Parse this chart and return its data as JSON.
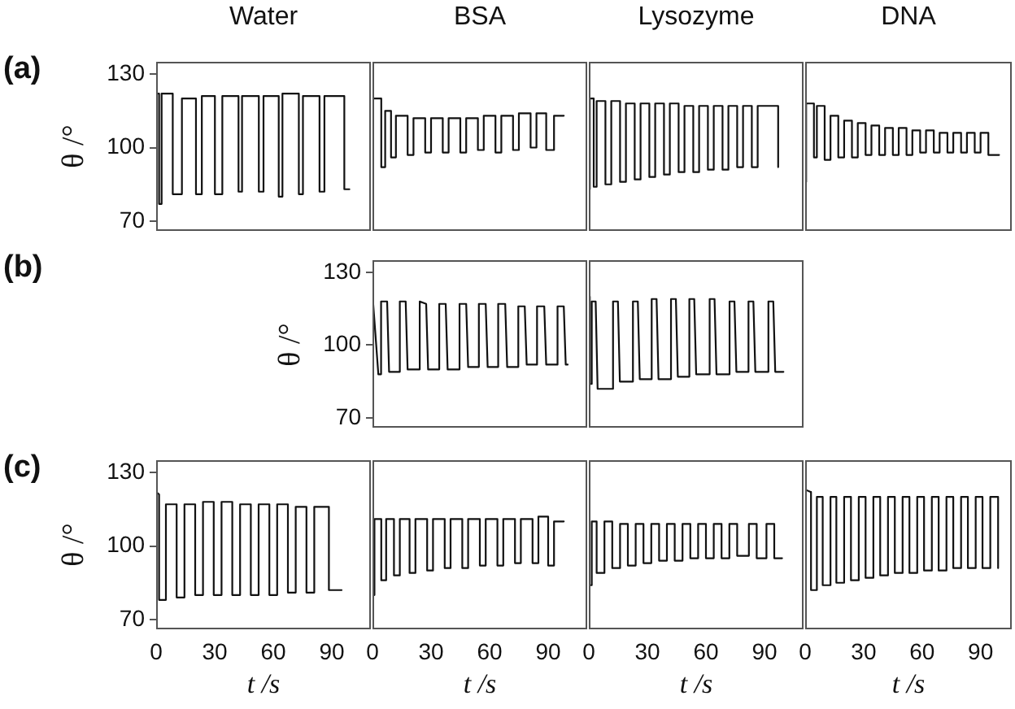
{
  "chart_data": [
    {
      "type": "line",
      "title": "Water",
      "ylabel": "θ /°",
      "annotations": [
        "(a)"
      ],
      "color": "#111111",
      "marker": "none",
      "line_style": "solid",
      "tick_labels": "y",
      "xlim": [
        0,
        110
      ],
      "xticks": [
        0,
        30,
        60,
        90
      ],
      "ylim": [
        66,
        135
      ],
      "yticks": [
        70,
        100,
        130
      ],
      "x": [
        0,
        0.3,
        1.5,
        1.5,
        2.8,
        2.8,
        8.5,
        8.5,
        13.2,
        13.2,
        20.4,
        20.4,
        23.4,
        23.4,
        30.1,
        30.1,
        33.9,
        33.9,
        42.2,
        42.2,
        44,
        44,
        52.6,
        52.6,
        55,
        55,
        62.8,
        62.8,
        64.7,
        64.7,
        73.1,
        73.1,
        75.2,
        75.2,
        83.7,
        83.7,
        86.2,
        86.2,
        96.4,
        96.4,
        99
      ],
      "values": [
        76,
        122,
        122,
        77,
        77,
        122,
        122,
        81,
        81,
        120,
        120,
        81,
        81,
        121,
        121,
        81,
        81,
        121,
        121,
        82,
        82,
        121,
        121,
        82,
        82,
        121,
        121,
        80,
        80,
        122,
        122,
        81,
        81,
        121,
        121,
        82,
        82,
        121,
        121,
        83,
        83
      ]
    },
    {
      "type": "line",
      "title": "BSA",
      "color": "#111111",
      "marker": "none",
      "line_style": "solid",
      "tick_labels": false,
      "xlim": [
        0,
        110
      ],
      "xticks": [
        0,
        30,
        60,
        90
      ],
      "ylim": [
        66,
        135
      ],
      "yticks": [
        70,
        100,
        130
      ],
      "x": [
        0,
        4.5,
        4.5,
        6.5,
        6.5,
        9.5,
        9.5,
        12,
        12,
        18,
        18,
        21,
        21,
        27,
        27,
        30,
        30,
        36,
        36,
        39,
        39,
        45,
        45,
        48,
        48,
        54,
        54,
        57,
        57,
        63,
        63,
        66,
        66,
        72,
        72,
        75,
        75,
        81,
        81,
        84,
        84,
        89,
        89,
        93,
        93,
        98
      ],
      "values": [
        120,
        120,
        92,
        92,
        115,
        115,
        96,
        96,
        113,
        113,
        97,
        97,
        112,
        112,
        98,
        98,
        112,
        112,
        98,
        98,
        112,
        112,
        98,
        98,
        112,
        112,
        99,
        99,
        113,
        113,
        98,
        98,
        113,
        113,
        99,
        99,
        114,
        114,
        100,
        100,
        114,
        114,
        99,
        99,
        113,
        113
      ]
    },
    {
      "type": "line",
      "title": "Lysozyme",
      "color": "#111111",
      "marker": "none",
      "line_style": "solid",
      "tick_labels": false,
      "xlim": [
        0,
        110
      ],
      "xticks": [
        0,
        30,
        60,
        90
      ],
      "ylim": [
        66,
        135
      ],
      "yticks": [
        70,
        100,
        130
      ],
      "x": [
        0,
        0.5,
        2.5,
        2.5,
        4,
        4,
        8.5,
        8.5,
        11.5,
        11.5,
        16,
        16,
        19,
        19,
        23.5,
        23.5,
        26.5,
        26.5,
        31,
        31,
        34,
        34,
        38.5,
        38.5,
        41.5,
        41.5,
        46,
        46,
        49,
        49,
        53.5,
        53.5,
        56.5,
        56.5,
        61,
        61,
        64,
        64,
        68.5,
        68.5,
        71.5,
        71.5,
        76,
        76,
        79,
        79,
        83.5,
        83.5,
        86.5,
        86.5,
        97,
        97
      ],
      "values": [
        83,
        120,
        120,
        84,
        84,
        119,
        119,
        85,
        85,
        119,
        119,
        86,
        86,
        118,
        118,
        87,
        87,
        118,
        118,
        88,
        88,
        118,
        118,
        89,
        89,
        118,
        118,
        90,
        90,
        117,
        117,
        90,
        90,
        117,
        117,
        91,
        91,
        117,
        117,
        91,
        91,
        117,
        117,
        92,
        92,
        117,
        117,
        92,
        92,
        117,
        117,
        92
      ]
    },
    {
      "type": "line",
      "title": "DNA",
      "color": "#111111",
      "marker": "none",
      "line_style": "solid",
      "tick_labels": false,
      "xlim": [
        0,
        106
      ],
      "xticks": [
        0,
        30,
        60,
        90
      ],
      "ylim": [
        66,
        135
      ],
      "yticks": [
        70,
        100,
        130
      ],
      "x": [
        0,
        0.5,
        4.5,
        4.5,
        6,
        6,
        10,
        10,
        13,
        13,
        17,
        17,
        20,
        20,
        24,
        24,
        27,
        27,
        31,
        31,
        34,
        34,
        38,
        38,
        41,
        41,
        45,
        45,
        48,
        48,
        52,
        52,
        55,
        55,
        59,
        59,
        62,
        62,
        66,
        66,
        69,
        69,
        73,
        73,
        76,
        76,
        80,
        80,
        83,
        83,
        87,
        87,
        90,
        90,
        94,
        94,
        99.5
      ],
      "values": [
        86,
        118,
        118,
        96,
        96,
        117,
        117,
        95,
        95,
        113,
        113,
        96,
        96,
        111,
        111,
        96,
        96,
        110,
        110,
        97,
        97,
        109,
        109,
        97,
        97,
        108,
        108,
        97,
        97,
        108,
        108,
        97,
        97,
        107,
        107,
        98,
        98,
        107,
        107,
        98,
        98,
        106,
        106,
        98,
        98,
        106,
        106,
        98,
        98,
        106,
        106,
        98,
        98,
        106,
        106,
        97,
        97
      ]
    },
    {
      "type": "line",
      "ylabel": "θ /°",
      "annotations": [
        "(b)"
      ],
      "color": "#111111",
      "marker": "none",
      "line_style": "solid",
      "tick_labels": "y",
      "xlim": [
        0,
        110
      ],
      "xticks": [
        0,
        30,
        60,
        90
      ],
      "ylim": [
        66,
        135
      ],
      "yticks": [
        70,
        100,
        130
      ],
      "x": [
        0,
        0.5,
        3,
        4.4,
        4.4,
        7.5,
        8.5,
        14,
        14,
        17,
        18,
        24.2,
        24.2,
        27.5,
        28.5,
        34.2,
        34.2,
        37.5,
        38.5,
        44.6,
        44.6,
        48,
        49,
        54.5,
        54.5,
        58,
        59,
        64.4,
        64.4,
        68,
        69,
        74.7,
        74.7,
        78,
        79,
        84.3,
        84.3,
        88,
        89,
        94.8,
        94.8,
        98,
        99,
        100
      ],
      "values": [
        121,
        121,
        88,
        88,
        118,
        118,
        89,
        89,
        118,
        118,
        90,
        90,
        118,
        117,
        90,
        90,
        117,
        117,
        90,
        90,
        117,
        117,
        91,
        91,
        117,
        117,
        91,
        91,
        117,
        117,
        91,
        91,
        116,
        116,
        92,
        92,
        116,
        116,
        92,
        92,
        116,
        116,
        92,
        92
      ]
    },
    {
      "type": "line",
      "color": "#111111",
      "marker": "none",
      "line_style": "solid",
      "tick_labels": false,
      "xlim": [
        0,
        110
      ],
      "xticks": [
        0,
        30,
        60,
        90
      ],
      "ylim": [
        66,
        135
      ],
      "yticks": [
        70,
        100,
        130
      ],
      "x": [
        0,
        0.5,
        1.5,
        1.5,
        3.5,
        4.5,
        12.4,
        12.4,
        14.9,
        15.9,
        22.6,
        22.6,
        25.1,
        26.1,
        32.2,
        32.2,
        34.7,
        35.7,
        42.1,
        42.1,
        44.6,
        45.6,
        51.5,
        51.5,
        54,
        55,
        61.9,
        61.9,
        64.4,
        65.4,
        72.1,
        72.1,
        74.6,
        75.6,
        81.8,
        81.8,
        84.3,
        85.3,
        92,
        92,
        94.5,
        95.5,
        99.7
      ],
      "values": [
        120,
        84,
        84,
        118,
        118,
        82,
        82,
        118,
        118,
        85,
        85,
        118,
        118,
        86,
        86,
        119,
        119,
        86,
        86,
        119,
        119,
        87,
        87,
        119,
        119,
        88,
        88,
        119,
        119,
        88,
        88,
        118,
        118,
        89,
        89,
        118,
        118,
        89,
        89,
        118,
        118,
        89,
        89
      ]
    },
    {
      "type": "line",
      "ylabel": "θ /°",
      "xlabel": "t /s",
      "annotations": [
        "(c)"
      ],
      "color": "#111111",
      "marker": "none",
      "line_style": "solid",
      "xlim": [
        0,
        110
      ],
      "xticks": [
        0,
        30,
        60,
        90
      ],
      "ylim": [
        66,
        135
      ],
      "yticks": [
        70,
        100,
        130
      ],
      "x": [
        0,
        1.5,
        1.5,
        5,
        5,
        10.5,
        10.5,
        14.5,
        14.5,
        20,
        20,
        24,
        24,
        29.5,
        29.5,
        33.5,
        33.5,
        39,
        39,
        43,
        43,
        48.5,
        48.5,
        52.5,
        52.5,
        58,
        58,
        62,
        62,
        67.5,
        67.5,
        71.5,
        71.5,
        77,
        77,
        81,
        81,
        88.5,
        88.5,
        95
      ],
      "values": [
        122,
        121,
        78,
        78,
        117,
        117,
        79,
        79,
        117,
        117,
        80,
        80,
        118,
        118,
        80,
        80,
        118,
        118,
        80,
        80,
        117,
        117,
        80,
        80,
        117,
        117,
        80,
        80,
        117,
        117,
        81,
        81,
        116,
        116,
        81,
        81,
        116,
        116,
        82,
        82
      ]
    },
    {
      "type": "line",
      "xlabel": "t /s",
      "color": "#111111",
      "marker": "none",
      "line_style": "solid",
      "tick_labels": "x",
      "xlim": [
        0,
        110
      ],
      "xticks": [
        0,
        30,
        60,
        90
      ],
      "ylim": [
        66,
        135
      ],
      "yticks": [
        70,
        100,
        130
      ],
      "x": [
        0,
        0.3,
        1,
        1,
        4.5,
        4.5,
        7,
        7,
        11,
        11,
        14,
        14,
        19,
        19,
        22,
        22,
        28,
        28,
        31,
        31,
        37,
        37,
        40,
        40,
        46,
        46,
        49,
        49,
        55,
        55,
        58,
        58,
        64,
        64,
        67,
        67,
        73,
        73,
        76,
        76,
        82,
        82,
        85,
        85,
        90,
        90,
        93,
        93,
        98
      ],
      "values": [
        118,
        80,
        80,
        111,
        111,
        86,
        86,
        111,
        111,
        88,
        88,
        111,
        111,
        89,
        89,
        111,
        111,
        90,
        90,
        111,
        111,
        91,
        91,
        111,
        111,
        91,
        91,
        111,
        111,
        92,
        92,
        111,
        111,
        92,
        92,
        111,
        111,
        93,
        93,
        111,
        111,
        93,
        93,
        112,
        112,
        92,
        92,
        110,
        110
      ]
    },
    {
      "type": "line",
      "xlabel": "t /s",
      "color": "#111111",
      "marker": "none",
      "line_style": "solid",
      "tick_labels": "x",
      "xlim": [
        0,
        110
      ],
      "xticks": [
        0,
        30,
        60,
        90
      ],
      "ylim": [
        66,
        135
      ],
      "yticks": [
        70,
        100,
        130
      ],
      "x": [
        0,
        0.3,
        1.5,
        1.5,
        4,
        4,
        8,
        8,
        12,
        12,
        16,
        16,
        20,
        20,
        24,
        24,
        28,
        28,
        32,
        32,
        36,
        36,
        40,
        40,
        44,
        44,
        48,
        48,
        52,
        52,
        56,
        56,
        60,
        60,
        64,
        64,
        68,
        68,
        72,
        72,
        76,
        76,
        82,
        82,
        86,
        86,
        91,
        91,
        95,
        95,
        99
      ],
      "values": [
        122,
        84,
        84,
        110,
        110,
        89,
        89,
        110,
        110,
        91,
        91,
        109,
        109,
        92,
        92,
        109,
        109,
        93,
        93,
        109,
        109,
        94,
        94,
        109,
        109,
        94,
        94,
        109,
        109,
        95,
        95,
        109,
        109,
        95,
        95,
        109,
        109,
        95,
        95,
        109,
        109,
        96,
        96,
        109,
        109,
        95,
        95,
        109,
        109,
        95,
        95
      ]
    },
    {
      "type": "line",
      "xlabel": "t /s",
      "color": "#111111",
      "marker": "none",
      "line_style": "solid",
      "tick_labels": "x",
      "xlim": [
        0,
        106
      ],
      "xticks": [
        0,
        30,
        60,
        90
      ],
      "ylim": [
        66,
        135
      ],
      "yticks": [
        70,
        100,
        130
      ],
      "x": [
        0,
        3,
        3,
        6,
        6,
        9,
        9,
        13,
        13,
        16,
        16,
        20,
        20,
        23.5,
        23.5,
        27.5,
        27.5,
        31,
        31,
        35,
        35,
        38.5,
        38.5,
        42.5,
        42.5,
        46,
        46,
        50,
        50,
        53.5,
        53.5,
        57.5,
        57.5,
        61,
        61,
        65,
        65,
        68.5,
        68.5,
        72.5,
        72.5,
        76,
        76,
        80,
        80,
        83.5,
        83.5,
        87.5,
        87.5,
        91,
        91,
        95,
        95,
        99,
        99
      ],
      "values": [
        123,
        122,
        82,
        82,
        120,
        120,
        84,
        84,
        120,
        120,
        85,
        85,
        120,
        120,
        86,
        86,
        120,
        120,
        87,
        87,
        120,
        120,
        88,
        88,
        120,
        120,
        89,
        89,
        120,
        120,
        89,
        89,
        120,
        120,
        90,
        90,
        120,
        120,
        90,
        90,
        120,
        120,
        91,
        91,
        120,
        120,
        91,
        91,
        120,
        120,
        91,
        91,
        120,
        120,
        91
      ]
    }
  ]
}
